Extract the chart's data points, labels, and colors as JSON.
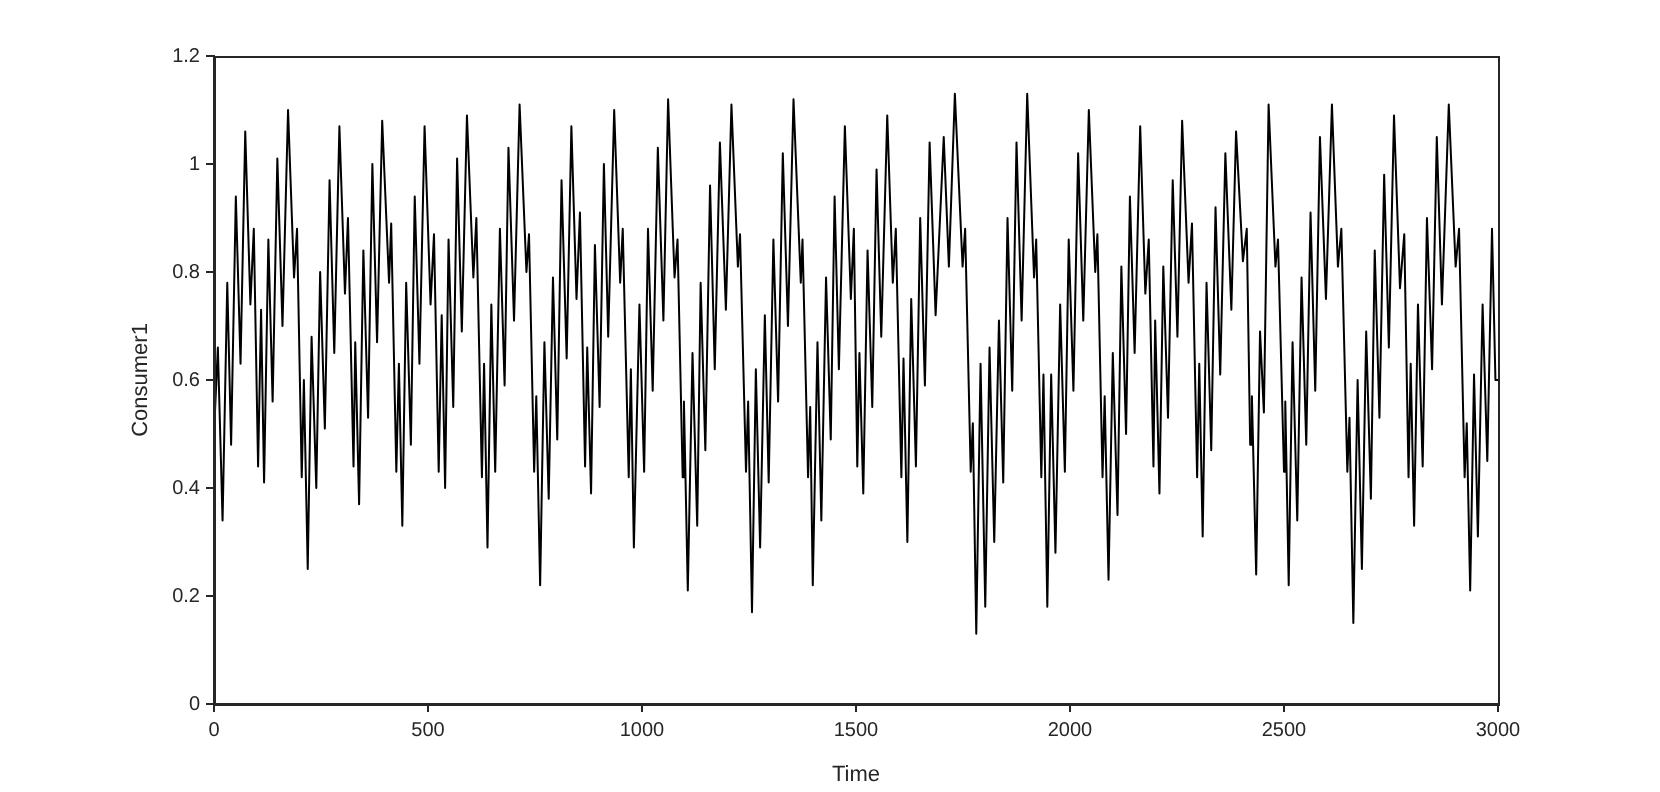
{
  "chart_data": {
    "type": "line",
    "xlabel": "Time",
    "ylabel": "Consumer1",
    "xlim": [
      0,
      3000
    ],
    "xticks": [
      0,
      500,
      1000,
      1500,
      2000,
      2500,
      3000
    ],
    "ylim": [
      0,
      1.2
    ],
    "yticks": [
      0,
      0.2,
      0.4,
      0.6,
      0.8,
      1,
      1.2
    ],
    "grid": false,
    "legend": false,
    "marker": "none",
    "line_style": "solid",
    "series": [
      {
        "color": "#000000",
        "x": [
          0,
          9,
          20,
          31,
          40,
          51,
          62,
          73,
          85,
          93,
          103,
          110,
          117,
          127,
          137,
          148,
          160,
          173,
          187,
          194,
          205,
          210,
          219,
          228,
          239,
          248,
          259,
          270,
          281,
          293,
          306,
          313,
          326,
          330,
          339,
          349,
          360,
          370,
          381,
          393,
          409,
          414,
          426,
          432,
          440,
          449,
          460,
          469,
          480,
          492,
          506,
          514,
          525,
          532,
          540,
          548,
          559,
          568,
          579,
          591,
          606,
          613,
          626,
          631,
          639,
          648,
          657,
          668,
          679,
          688,
          701,
          714,
          730,
          736,
          748,
          753,
          762,
          772,
          782,
          792,
          802,
          812,
          824,
          835,
          847,
          855,
          867,
          872,
          881,
          890,
          901,
          911,
          921,
          935,
          949,
          955,
          969,
          974,
          981,
          994,
          1005,
          1014,
          1025,
          1037,
          1050,
          1061,
          1076,
          1083,
          1095,
          1098,
          1107,
          1118,
          1129,
          1137,
          1148,
          1159,
          1170,
          1182,
          1196,
          1209,
          1224,
          1229,
          1243,
          1248,
          1257,
          1266,
          1276,
          1287,
          1296,
          1307,
          1318,
          1329,
          1341,
          1354,
          1371,
          1375,
          1388,
          1393,
          1399,
          1410,
          1419,
          1430,
          1441,
          1450,
          1460,
          1474,
          1488,
          1495,
          1503,
          1508,
          1517,
          1527,
          1538,
          1548,
          1559,
          1573,
          1586,
          1593,
          1606,
          1611,
          1620,
          1629,
          1640,
          1650,
          1661,
          1672,
          1686,
          1705,
          1717,
          1731,
          1749,
          1755,
          1768,
          1773,
          1781,
          1791,
          1802,
          1812,
          1823,
          1834,
          1844,
          1854,
          1865,
          1875,
          1887,
          1900,
          1916,
          1921,
          1933,
          1938,
          1947,
          1956,
          1966,
          1977,
          1988,
          1997,
          2008,
          2019,
          2031,
          2044,
          2059,
          2064,
          2076,
          2081,
          2090,
          2100,
          2111,
          2120,
          2131,
          2140,
          2151,
          2164,
          2176,
          2184,
          2195,
          2199,
          2209,
          2218,
          2229,
          2240,
          2251,
          2262,
          2277,
          2285,
          2297,
          2302,
          2310,
          2319,
          2330,
          2340,
          2351,
          2363,
          2377,
          2388,
          2404,
          2413,
          2421,
          2425,
          2435,
          2444,
          2453,
          2464,
          2480,
          2486,
          2500,
          2503,
          2511,
          2520,
          2531,
          2541,
          2552,
          2562,
          2573,
          2584,
          2598,
          2612,
          2626,
          2634,
          2648,
          2653,
          2662,
          2672,
          2682,
          2692,
          2703,
          2712,
          2723,
          2734,
          2745,
          2757,
          2771,
          2781,
          2791,
          2796,
          2804,
          2813,
          2824,
          2834,
          2846,
          2857,
          2869,
          2885,
          2901,
          2909,
          2922,
          2927,
          2935,
          2944,
          2953,
          2964,
          2975,
          2986,
          2994,
          3000
        ],
        "values": [
          0.5,
          0.66,
          0.34,
          0.78,
          0.48,
          0.94,
          0.63,
          1.06,
          0.74,
          0.88,
          0.44,
          0.73,
          0.41,
          0.86,
          0.56,
          1.01,
          0.7,
          1.1,
          0.79,
          0.88,
          0.42,
          0.6,
          0.25,
          0.68,
          0.4,
          0.8,
          0.51,
          0.97,
          0.65,
          1.07,
          0.76,
          0.9,
          0.44,
          0.67,
          0.37,
          0.84,
          0.53,
          1,
          0.67,
          1.08,
          0.78,
          0.89,
          0.43,
          0.63,
          0.33,
          0.78,
          0.48,
          0.94,
          0.63,
          1.07,
          0.74,
          0.87,
          0.43,
          0.72,
          0.4,
          0.86,
          0.55,
          1.01,
          0.69,
          1.09,
          0.79,
          0.9,
          0.42,
          0.63,
          0.29,
          0.74,
          0.43,
          0.88,
          0.59,
          1.03,
          0.71,
          1.11,
          0.8,
          0.87,
          0.43,
          0.57,
          0.22,
          0.67,
          0.38,
          0.79,
          0.49,
          0.97,
          0.64,
          1.07,
          0.75,
          0.91,
          0.44,
          0.66,
          0.39,
          0.85,
          0.55,
          1,
          0.68,
          1.1,
          0.78,
          0.88,
          0.42,
          0.62,
          0.29,
          0.74,
          0.43,
          0.88,
          0.58,
          1.03,
          0.71,
          1.12,
          0.79,
          0.86,
          0.42,
          0.56,
          0.21,
          0.65,
          0.33,
          0.78,
          0.47,
          0.96,
          0.62,
          1.04,
          0.73,
          1.11,
          0.81,
          0.87,
          0.43,
          0.56,
          0.17,
          0.62,
          0.29,
          0.72,
          0.41,
          0.86,
          0.56,
          1.02,
          0.7,
          1.12,
          0.78,
          0.86,
          0.42,
          0.55,
          0.22,
          0.67,
          0.34,
          0.79,
          0.49,
          0.94,
          0.62,
          1.07,
          0.75,
          0.88,
          0.44,
          0.65,
          0.39,
          0.84,
          0.55,
          0.99,
          0.68,
          1.09,
          0.78,
          0.88,
          0.42,
          0.64,
          0.3,
          0.75,
          0.44,
          0.9,
          0.59,
          1.04,
          0.72,
          1.05,
          0.81,
          1.13,
          0.81,
          0.88,
          0.43,
          0.52,
          0.13,
          0.63,
          0.18,
          0.66,
          0.3,
          0.71,
          0.41,
          0.9,
          0.58,
          1.04,
          0.71,
          1.13,
          0.79,
          0.86,
          0.42,
          0.61,
          0.18,
          0.61,
          0.28,
          0.74,
          0.43,
          0.86,
          0.58,
          1.02,
          0.71,
          1.1,
          0.8,
          0.87,
          0.42,
          0.57,
          0.23,
          0.65,
          0.35,
          0.81,
          0.5,
          0.94,
          0.65,
          1.07,
          0.76,
          0.86,
          0.44,
          0.71,
          0.39,
          0.81,
          0.53,
          0.97,
          0.68,
          1.08,
          0.78,
          0.89,
          0.42,
          0.63,
          0.31,
          0.78,
          0.47,
          0.92,
          0.61,
          1.02,
          0.73,
          1.06,
          0.82,
          0.88,
          0.48,
          0.57,
          0.24,
          0.69,
          0.54,
          1.11,
          0.81,
          0.86,
          0.43,
          0.56,
          0.22,
          0.67,
          0.34,
          0.79,
          0.48,
          0.91,
          0.58,
          1.05,
          0.75,
          1.11,
          0.81,
          0.88,
          0.43,
          0.53,
          0.15,
          0.6,
          0.25,
          0.69,
          0.38,
          0.84,
          0.53,
          0.98,
          0.66,
          1.09,
          0.77,
          0.87,
          0.42,
          0.63,
          0.33,
          0.74,
          0.44,
          0.9,
          0.62,
          1.05,
          0.74,
          1.11,
          0.81,
          0.88,
          0.42,
          0.52,
          0.21,
          0.61,
          0.31,
          0.74,
          0.45,
          0.88,
          0.6,
          0.6
        ]
      }
    ]
  }
}
